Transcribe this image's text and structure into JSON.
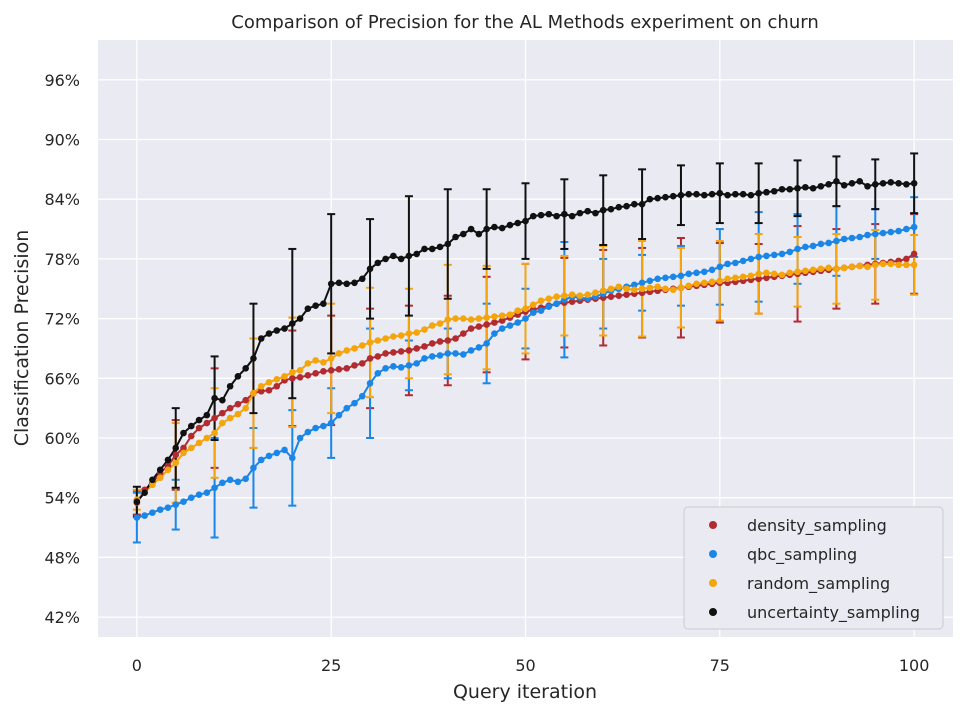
{
  "chart_data": {
    "type": "line",
    "title": "Comparison of Precision for the AL Methods experiment on churn",
    "xlabel": "Query iteration",
    "ylabel": "Classification Precision",
    "xlim": [
      -5,
      105
    ],
    "ylim": [
      40,
      100
    ],
    "xticks": [
      0,
      25,
      50,
      75,
      100
    ],
    "xtick_labels": [
      "0",
      "25",
      "50",
      "75",
      "100"
    ],
    "yticks": [
      42,
      48,
      54,
      60,
      66,
      72,
      78,
      84,
      90,
      96
    ],
    "ytick_labels": [
      "42%",
      "48%",
      "54%",
      "60%",
      "66%",
      "72%",
      "78%",
      "84%",
      "90%",
      "96%"
    ],
    "grid": true,
    "legend_position": "lower-right",
    "background": "#eaeaf2",
    "errorbar_every": 5,
    "series": [
      {
        "name": "density_sampling",
        "color": "#b22b2f",
        "values": [
          53.5,
          54.8,
          55.5,
          56.5,
          57.2,
          58.3,
          59.0,
          60.2,
          61.0,
          61.5,
          62.0,
          62.5,
          63.0,
          63.4,
          63.8,
          64.5,
          64.7,
          64.8,
          65.2,
          65.8,
          66.0,
          66.1,
          66.3,
          66.5,
          66.7,
          66.8,
          66.9,
          67.0,
          67.3,
          67.5,
          68.0,
          68.2,
          68.5,
          68.6,
          68.7,
          68.8,
          69.0,
          69.2,
          69.5,
          69.7,
          69.8,
          70.0,
          70.5,
          71.0,
          71.2,
          71.4,
          71.6,
          71.8,
          72.1,
          72.4,
          72.7,
          72.9,
          73.1,
          73.3,
          73.5,
          73.6,
          73.7,
          73.8,
          73.9,
          74.0,
          74.1,
          74.2,
          74.3,
          74.4,
          74.5,
          74.6,
          74.7,
          74.8,
          74.9,
          75.0,
          75.1,
          75.2,
          75.3,
          75.4,
          75.5,
          75.6,
          75.6,
          75.7,
          75.8,
          75.9,
          76.0,
          76.1,
          76.2,
          76.3,
          76.4,
          76.5,
          76.6,
          76.7,
          76.8,
          76.9,
          77.0,
          77.1,
          77.2,
          77.3,
          77.4,
          77.5,
          77.6,
          77.7,
          77.8,
          78.0,
          78.5
        ],
        "errors": [
          1.2,
          1.2,
          1.2,
          1.2,
          1.2,
          3.5,
          3.5,
          3.5,
          3.5,
          3.5,
          5.0,
          5.0,
          5.0,
          5.0,
          5.0,
          5.5,
          5.5,
          5.5,
          5.5,
          5.5,
          4.8,
          4.8,
          4.8,
          4.8,
          4.8,
          5.5,
          5.5,
          5.5,
          5.5,
          5.5,
          5.0,
          5.0,
          5.0,
          5.0,
          5.0,
          4.5,
          4.5,
          4.5,
          4.5,
          4.5,
          4.5,
          4.5,
          4.5,
          4.5,
          4.5,
          4.8,
          4.8,
          4.8,
          4.8,
          4.8,
          4.8,
          4.8,
          4.8,
          4.8,
          4.8,
          4.5,
          4.5,
          4.5,
          4.5,
          4.5,
          4.8,
          4.8,
          4.8,
          4.8,
          4.8,
          4.5,
          4.5,
          4.5,
          4.5,
          4.5,
          5.0,
          5.0,
          5.0,
          5.0,
          5.0,
          4.0,
          4.0,
          4.0,
          4.0,
          4.0,
          3.5,
          3.5,
          3.5,
          3.5,
          3.5,
          4.8,
          4.8,
          4.8,
          4.8,
          4.8,
          4.0,
          4.0,
          4.0,
          4.0,
          4.0,
          4.0,
          4.0,
          4.0,
          4.0,
          4.0,
          4.0
        ]
      },
      {
        "name": "qbc_sampling",
        "color": "#1a86e8",
        "values": [
          52.0,
          52.2,
          52.5,
          52.8,
          53.0,
          53.3,
          53.6,
          54.0,
          54.3,
          54.5,
          55.0,
          55.5,
          55.8,
          55.6,
          55.9,
          57.0,
          57.8,
          58.2,
          58.5,
          58.8,
          58.0,
          60.0,
          60.6,
          61.0,
          61.2,
          61.5,
          62.3,
          63.0,
          63.5,
          64.2,
          65.5,
          66.5,
          67.0,
          67.2,
          67.1,
          67.3,
          67.5,
          68.0,
          68.2,
          68.3,
          68.5,
          68.5,
          68.4,
          68.8,
          69.1,
          69.5,
          70.5,
          71.0,
          71.3,
          71.6,
          72.0,
          72.6,
          72.8,
          73.2,
          73.5,
          73.9,
          74.2,
          74.1,
          74.0,
          74.2,
          74.5,
          74.8,
          75.0,
          75.2,
          75.4,
          75.6,
          75.8,
          76.0,
          76.1,
          76.2,
          76.3,
          76.5,
          76.6,
          76.7,
          76.9,
          77.2,
          77.5,
          77.6,
          77.8,
          78.0,
          78.2,
          78.3,
          78.4,
          78.5,
          78.7,
          79.0,
          79.2,
          79.3,
          79.5,
          79.6,
          79.8,
          80.0,
          80.1,
          80.2,
          80.4,
          80.5,
          80.6,
          80.7,
          80.8,
          81.0,
          81.2
        ],
        "errors": [
          2.5,
          2.5,
          2.5,
          2.5,
          2.5,
          2.5,
          2.5,
          2.5,
          2.5,
          2.5,
          5.0,
          5.0,
          5.0,
          5.0,
          5.0,
          4.0,
          4.0,
          4.0,
          4.0,
          4.0,
          4.8,
          4.8,
          4.8,
          4.8,
          4.8,
          3.5,
          3.5,
          3.5,
          3.5,
          3.5,
          5.5,
          5.5,
          5.5,
          5.5,
          5.5,
          2.5,
          2.5,
          2.5,
          2.5,
          2.5,
          2.5,
          2.5,
          2.5,
          2.5,
          2.5,
          4.0,
          4.0,
          4.0,
          4.0,
          4.0,
          3.0,
          3.0,
          3.0,
          3.0,
          3.0,
          5.8,
          5.8,
          5.8,
          5.8,
          5.8,
          3.5,
          3.5,
          3.5,
          3.5,
          3.5,
          2.8,
          2.8,
          2.8,
          2.8,
          2.8,
          3.0,
          3.0,
          3.0,
          3.0,
          3.0,
          3.8,
          3.8,
          3.8,
          3.8,
          3.8,
          4.5,
          4.5,
          4.5,
          4.5,
          4.5,
          3.5,
          3.5,
          3.5,
          3.5,
          3.5,
          3.5,
          3.5,
          3.5,
          3.5,
          3.5,
          2.5,
          2.5,
          2.5,
          2.5,
          2.5,
          3.0
        ]
      },
      {
        "name": "random_sampling",
        "color": "#f4a50c",
        "values": [
          53.8,
          54.5,
          55.3,
          56.0,
          56.8,
          57.5,
          58.5,
          59.0,
          59.5,
          60.0,
          60.5,
          61.5,
          62.0,
          62.4,
          63.0,
          64.5,
          65.2,
          65.6,
          65.9,
          66.2,
          66.6,
          66.8,
          67.5,
          67.8,
          67.6,
          68.0,
          68.5,
          68.8,
          69.0,
          69.3,
          69.6,
          69.8,
          70.0,
          70.2,
          70.3,
          70.5,
          70.6,
          70.9,
          71.3,
          71.5,
          71.9,
          72.0,
          72.0,
          71.9,
          72.0,
          72.1,
          72.2,
          72.3,
          72.4,
          72.8,
          73.0,
          73.4,
          73.8,
          74.0,
          74.2,
          74.3,
          74.4,
          74.3,
          74.4,
          74.6,
          74.8,
          75.0,
          75.2,
          75.0,
          74.9,
          75.0,
          75.1,
          75.2,
          75.0,
          74.9,
          75.1,
          75.3,
          75.5,
          75.6,
          75.7,
          75.8,
          76.0,
          76.1,
          76.2,
          76.3,
          76.5,
          76.6,
          76.5,
          76.4,
          76.6,
          76.7,
          76.8,
          76.9,
          77.0,
          77.1,
          77.0,
          77.1,
          77.2,
          77.3,
          77.2,
          77.4,
          77.5,
          77.5,
          77.4,
          77.4,
          77.4
        ],
        "errors": [
          1.0,
          1.0,
          1.0,
          1.0,
          1.0,
          4.0,
          4.0,
          4.0,
          4.0,
          4.0,
          4.5,
          4.5,
          4.5,
          4.5,
          4.5,
          5.5,
          5.5,
          5.5,
          5.5,
          5.5,
          5.5,
          5.5,
          5.5,
          5.5,
          5.5,
          5.5,
          5.5,
          5.5,
          5.5,
          5.5,
          5.5,
          5.5,
          5.5,
          5.5,
          5.5,
          4.5,
          4.5,
          4.5,
          4.5,
          4.5,
          5.5,
          5.5,
          5.5,
          5.5,
          5.5,
          5.2,
          5.2,
          5.2,
          5.2,
          5.2,
          4.5,
          4.5,
          4.5,
          4.5,
          4.5,
          4.0,
          4.0,
          4.0,
          4.0,
          4.0,
          4.5,
          4.5,
          4.5,
          4.5,
          4.5,
          4.8,
          4.8,
          4.8,
          4.8,
          4.8,
          4.0,
          4.0,
          4.0,
          4.0,
          4.0,
          4.0,
          4.0,
          4.0,
          4.0,
          4.0,
          4.0,
          4.0,
          4.0,
          4.0,
          4.0,
          3.5,
          3.5,
          3.5,
          3.5,
          3.5,
          3.5,
          3.5,
          3.5,
          3.5,
          3.5,
          3.5,
          3.5,
          3.5,
          3.5,
          3.5,
          3.0
        ]
      },
      {
        "name": "uncertainty_sampling",
        "color": "#111111",
        "values": [
          53.6,
          54.5,
          55.8,
          56.8,
          57.8,
          59.0,
          60.5,
          61.2,
          61.8,
          62.3,
          64.0,
          63.8,
          65.2,
          66.2,
          67.0,
          68.0,
          70.0,
          70.5,
          70.8,
          71.0,
          71.5,
          72.0,
          73.0,
          73.3,
          73.5,
          75.5,
          75.6,
          75.5,
          75.6,
          76.0,
          77.0,
          77.6,
          78.0,
          78.3,
          78.0,
          78.3,
          78.5,
          79.0,
          79.0,
          79.2,
          79.5,
          80.2,
          80.5,
          81.0,
          80.5,
          81.0,
          81.2,
          81.1,
          81.4,
          81.6,
          81.8,
          82.3,
          82.4,
          82.5,
          82.3,
          82.5,
          82.3,
          82.6,
          82.8,
          82.6,
          82.9,
          83.0,
          83.2,
          83.3,
          83.5,
          83.5,
          84.0,
          84.1,
          84.2,
          84.3,
          84.4,
          84.5,
          84.5,
          84.4,
          84.5,
          84.6,
          84.4,
          84.5,
          84.5,
          84.4,
          84.6,
          84.7,
          84.8,
          85.0,
          85.0,
          85.1,
          85.2,
          85.1,
          85.3,
          85.5,
          85.8,
          85.4,
          85.6,
          85.8,
          85.3,
          85.5,
          85.6,
          85.7,
          85.6,
          85.5,
          85.6
        ],
        "errors": [
          1.5,
          1.5,
          1.5,
          1.5,
          1.5,
          4.0,
          4.0,
          4.0,
          4.0,
          4.0,
          4.2,
          4.2,
          4.2,
          4.2,
          4.2,
          5.5,
          5.5,
          5.5,
          5.5,
          5.5,
          7.5,
          7.5,
          7.5,
          7.5,
          7.5,
          7.0,
          7.0,
          7.0,
          7.0,
          7.0,
          5.0,
          5.0,
          5.0,
          5.0,
          5.0,
          6.0,
          6.0,
          6.0,
          6.0,
          6.0,
          5.5,
          5.5,
          5.5,
          5.5,
          5.5,
          4.0,
          4.0,
          4.0,
          4.0,
          4.0,
          3.8,
          3.8,
          3.8,
          3.8,
          3.8,
          3.5,
          3.5,
          3.5,
          3.5,
          3.5,
          3.5,
          3.5,
          3.5,
          3.5,
          3.5,
          3.5,
          3.5,
          3.5,
          3.5,
          3.5,
          3.0,
          3.0,
          3.0,
          3.0,
          3.0,
          3.0,
          3.0,
          3.0,
          3.0,
          3.0,
          3.0,
          3.0,
          3.0,
          3.0,
          3.0,
          2.8,
          2.8,
          2.8,
          2.8,
          2.8,
          2.5,
          2.5,
          2.5,
          2.5,
          2.5,
          2.5,
          2.5,
          2.5,
          2.5,
          2.5,
          3.0
        ]
      }
    ]
  }
}
